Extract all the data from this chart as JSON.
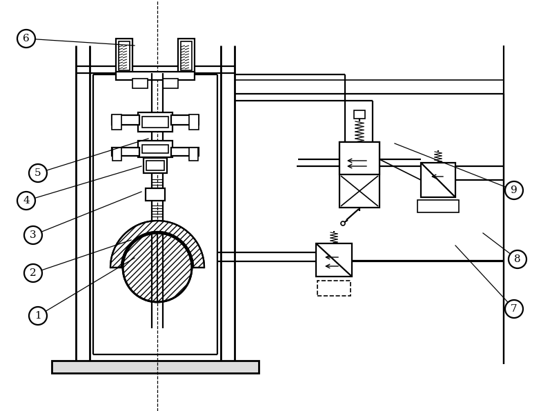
{
  "bg_color": "#ffffff",
  "line_color": "#000000",
  "fig_width": 8.0,
  "fig_height": 5.96,
  "labels": [
    "1",
    "2",
    "3",
    "4",
    "5",
    "6",
    "7",
    "8",
    "9"
  ],
  "label_positions_x": [
    55,
    48,
    48,
    38,
    55,
    38,
    745,
    750,
    745
  ],
  "label_positions_y": [
    138,
    200,
    255,
    305,
    345,
    540,
    148,
    220,
    320
  ],
  "leader_ends_x": [
    195,
    190,
    205,
    205,
    215,
    195,
    660,
    700,
    572
  ],
  "leader_ends_y": [
    222,
    248,
    318,
    355,
    395,
    530,
    240,
    258,
    388
  ]
}
